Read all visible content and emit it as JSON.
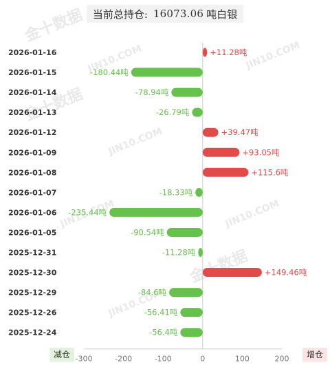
{
  "header": {
    "label": "当前总持仓:",
    "value": "16073.06",
    "unit": "吨白银"
  },
  "watermarks": [
    "金十数据",
    "JIN10.COM"
  ],
  "legend": {
    "decrease": "减仓",
    "increase": "增仓"
  },
  "colors": {
    "increase": "#e34b4b",
    "decrease": "#66c24d",
    "axis": "#cccccc",
    "label_text": "#333333"
  },
  "chart_data": {
    "type": "bar",
    "orientation": "horizontal",
    "categories": [
      "2026-01-16",
      "2026-01-15",
      "2026-01-14",
      "2026-01-13",
      "2026-01-12",
      "2026-01-09",
      "2026-01-08",
      "2026-01-07",
      "2026-01-06",
      "2026-01-05",
      "2025-12-31",
      "2025-12-30",
      "2025-12-29",
      "2025-12-26",
      "2025-12-24"
    ],
    "values": [
      11.28,
      -180.44,
      -78.94,
      -26.79,
      39.47,
      93.05,
      115.6,
      -18.33,
      -235.44,
      -90.54,
      -11.28,
      149.46,
      -84.6,
      -56.41,
      -56.4
    ],
    "labels": [
      "+11.28吨",
      "-180.44吨",
      "-78.94吨",
      "-26.79吨",
      "+39.47吨",
      "+93.05吨",
      "+115.6吨",
      "-18.33吨",
      "-235.44吨",
      "-90.54吨",
      "-11.28吨",
      "+149.46吨",
      "-84.6吨",
      "-56.41吨",
      "-56.4吨"
    ],
    "xlim": [
      -300,
      200
    ],
    "xticks": [
      -300,
      -200,
      -100,
      0,
      100,
      200
    ],
    "xtick_labels": [
      "-300",
      "-200",
      "-100",
      "0",
      "100",
      "200"
    ],
    "grid": false
  }
}
